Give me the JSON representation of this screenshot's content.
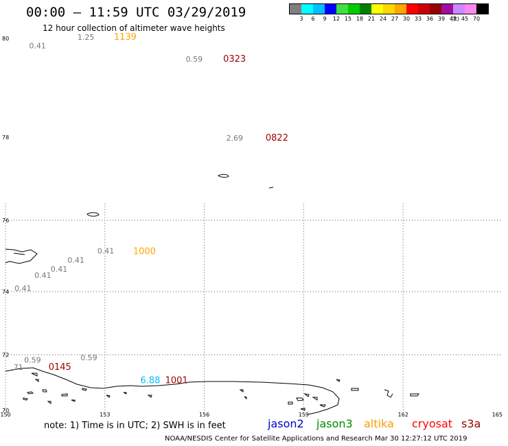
{
  "header": {
    "title": "00:00 – 11:59 UTC 03/29/2019",
    "subtitle": "12 hour collection of altimeter wave heights"
  },
  "legend": {
    "colors": [
      "#7f7f7f",
      "#00ffff",
      "#00bfff",
      "#0000ff",
      "#40e040",
      "#00cc00",
      "#008000",
      "#ffff00",
      "#ffd700",
      "#ffa500",
      "#ff0000",
      "#cc0000",
      "#990000",
      "#9e0f9e",
      "#cc88ff",
      "#ff88ee",
      "#000000"
    ],
    "ticks": [
      "3",
      "6",
      "9",
      "12",
      "15",
      "18",
      "21",
      "24",
      "27",
      "30",
      "33",
      "36",
      "39",
      "42",
      "45",
      "70"
    ],
    "unit": "(ft)"
  },
  "axes": {
    "lat_labels": [
      "80",
      "78",
      "76",
      "74",
      "72",
      "70"
    ],
    "lon_labels": [
      "150",
      "153",
      "156",
      "159",
      "162",
      "165"
    ]
  },
  "map_labels": {
    "heights": [
      {
        "text": "0.41",
        "lon": 151.22,
        "lat": 79.8
      },
      {
        "text": "1.25",
        "lon": 152.68,
        "lat": 79.97
      },
      {
        "text": "0.59",
        "lon": 155.95,
        "lat": 79.53
      },
      {
        "text": "2.69",
        "lon": 157.17,
        "lat": 77.92
      },
      {
        "text": "0.41",
        "lon": 153.28,
        "lat": 75.07
      },
      {
        "text": "0.41",
        "lon": 152.38,
        "lat": 74.81
      },
      {
        "text": "0.41",
        "lon": 151.87,
        "lat": 74.56
      },
      {
        "text": "0.41",
        "lon": 151.38,
        "lat": 74.38
      },
      {
        "text": "0.41",
        "lon": 150.78,
        "lat": 74.02
      },
      {
        "text": "0.59",
        "lon": 151.07,
        "lat": 71.72
      },
      {
        "text": "0.59",
        "lon": 152.77,
        "lat": 71.8
      },
      {
        "text": ".71",
        "lon": 150.53,
        "lat": 71.46
      }
    ],
    "times": [
      {
        "text": "1139",
        "lon": 153.27,
        "lat": 79.97,
        "color": "#ffa500"
      },
      {
        "text": "0323",
        "lon": 156.57,
        "lat": 79.53,
        "color": "#990000"
      },
      {
        "text": "0822",
        "lon": 157.85,
        "lat": 77.92,
        "color": "#990000"
      },
      {
        "text": "1000",
        "lon": 153.85,
        "lat": 75.05,
        "color": "#ffa500"
      },
      {
        "text": "0145",
        "lon": 151.3,
        "lat": 71.46,
        "color": "#990000"
      },
      {
        "text": "1001",
        "lon": 154.82,
        "lat": 70.98,
        "color": "#990000"
      },
      {
        "text": "6.88",
        "lon": 154.07,
        "lat": 70.98,
        "color": "#00bfff"
      }
    ]
  },
  "footer": {
    "note": "note: 1) Time is in UTC; 2) SWH is in feet",
    "satellites": [
      {
        "name": "jason2",
        "color": "#0000cc"
      },
      {
        "name": "jason3",
        "color": "#008800"
      },
      {
        "name": "altika",
        "color": "#ff9900"
      },
      {
        "name": "cryosat",
        "color": "#ff0000"
      },
      {
        "name": "s3a",
        "color": "#990000"
      }
    ],
    "credit": "NOAA/NESDIS Center for Satellite Applications and Research    Mar 30 12:27:12 UTC 2019"
  }
}
